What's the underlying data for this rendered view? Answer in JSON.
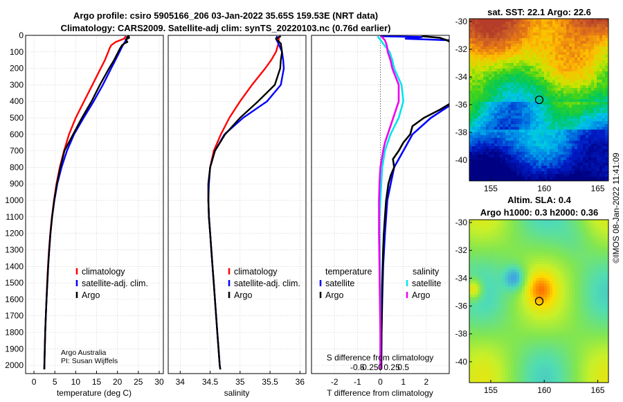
{
  "header": {
    "title_line1": "Argo profile: csiro 5905166_206 03-Jan-2022 35.65S 159.53E (NRT data)",
    "title_line2": "Climatology: CARS2009. Satellite-adj clim: synTS_20220103.nc (0.76d earlier)"
  },
  "colors": {
    "climatology": "#ff0000",
    "satellite": "#0000ff",
    "argo": "#000000",
    "satellite_salinity": "#00e5ee",
    "argo_salinity": "#ee00ee"
  },
  "chart_data": [
    {
      "type": "line",
      "id": "temperature",
      "xlabel": "temperature (deg C)",
      "xlim": [
        -2,
        31
      ],
      "xticks": [
        0,
        5,
        10,
        15,
        20,
        25,
        30
      ],
      "ylim": [
        0,
        2050
      ],
      "yticks": [
        0,
        100,
        200,
        300,
        400,
        500,
        600,
        700,
        800,
        900,
        1000,
        1100,
        1200,
        1300,
        1400,
        1500,
        1600,
        1700,
        1800,
        1900,
        2000
      ],
      "credit_line1": "Argo Australia",
      "credit_line2": "PI: Susan Wijffels",
      "legend": [
        "climatology",
        "satellite-adj. clim.",
        "Argo"
      ],
      "series": [
        {
          "name": "climatology",
          "color": "#ff0000",
          "depth": [
            5,
            20,
            40,
            60,
            80,
            100,
            150,
            200,
            300,
            400,
            500,
            600,
            700,
            800,
            900,
            1000,
            1100,
            1200,
            1300,
            1400,
            1500,
            1600,
            1700,
            1800,
            1900,
            2000,
            2025
          ],
          "value": [
            22,
            21.6,
            19.6,
            18.5,
            18.1,
            17.8,
            17.0,
            16.0,
            14.0,
            12.0,
            10.0,
            8.4,
            7.2,
            6.2,
            5.4,
            4.8,
            4.3,
            3.9,
            3.6,
            3.35,
            3.15,
            3.0,
            2.85,
            2.7,
            2.6,
            2.5,
            2.48
          ]
        },
        {
          "name": "satellite-adj. clim.",
          "color": "#0000ff",
          "depth": [
            5,
            20,
            40,
            60,
            80,
            100,
            150,
            200,
            300,
            400,
            500,
            600,
            700,
            800,
            900,
            1000,
            1100,
            1200,
            1300,
            1400,
            1500,
            1600,
            1700,
            1800,
            1900,
            2000,
            2025
          ],
          "value": [
            22.5,
            22.2,
            21.8,
            21.3,
            20.9,
            20.5,
            19.5,
            18.5,
            16.5,
            14.3,
            11.9,
            9.6,
            7.9,
            6.6,
            5.6,
            4.9,
            4.35,
            3.95,
            3.65,
            3.4,
            3.2,
            3.0,
            2.85,
            2.7,
            2.6,
            2.5,
            2.48
          ]
        },
        {
          "name": "Argo",
          "color": "#000000",
          "depth": [
            5,
            10,
            15,
            25,
            40,
            50,
            60,
            80,
            100,
            150,
            200,
            300,
            400,
            500,
            600,
            700,
            800,
            900,
            1000,
            1100,
            1200,
            1300,
            1400,
            1500,
            1600,
            1700,
            1800,
            1900,
            2000,
            2025
          ],
          "value": [
            22.9,
            22.3,
            22.8,
            22.0,
            22.4,
            21.6,
            21.1,
            20.6,
            20.2,
            19.2,
            18.0,
            15.8,
            13.8,
            11.5,
            9.4,
            7.3,
            6.3,
            5.5,
            4.85,
            4.35,
            3.95,
            3.65,
            3.4,
            3.2,
            3.0,
            2.85,
            2.7,
            2.6,
            2.5,
            2.48
          ]
        }
      ]
    },
    {
      "type": "line",
      "id": "salinity",
      "xlabel": "salinity",
      "xlim": [
        33.8,
        36.1
      ],
      "xticks": [
        34,
        34.5,
        35,
        35.5,
        36
      ],
      "ylim": [
        0,
        2050
      ],
      "legend": [
        "climatology",
        "satellite-adj. clim.",
        "Argo"
      ],
      "series": [
        {
          "name": "climatology",
          "color": "#ff0000",
          "depth": [
            5,
            50,
            100,
            150,
            200,
            300,
            400,
            500,
            600,
            700,
            800,
            900,
            1000,
            1100,
            1200,
            1300,
            1400,
            1500,
            1600,
            1700,
            1800,
            1900,
            2000,
            2025
          ],
          "value": [
            35.65,
            35.64,
            35.6,
            35.52,
            35.42,
            35.2,
            35.0,
            34.82,
            34.68,
            34.56,
            34.5,
            34.47,
            34.47,
            34.48,
            34.5,
            34.52,
            34.54,
            34.56,
            34.58,
            34.6,
            34.62,
            34.64,
            34.66,
            34.67
          ]
        },
        {
          "name": "satellite-adj. clim.",
          "color": "#0000ff",
          "depth": [
            5,
            20,
            50,
            100,
            150,
            200,
            300,
            400,
            500,
            600,
            700,
            800,
            900,
            1000,
            1100,
            1200,
            1300,
            1400,
            1500,
            1600,
            1700,
            1800,
            1900,
            2000,
            2025
          ],
          "value": [
            35.62,
            35.6,
            35.64,
            35.7,
            35.72,
            35.73,
            35.68,
            35.45,
            35.05,
            34.74,
            34.58,
            34.5,
            34.48,
            34.47,
            34.48,
            34.5,
            34.52,
            34.54,
            34.56,
            34.58,
            34.6,
            34.62,
            34.64,
            34.66,
            34.67
          ]
        },
        {
          "name": "Argo",
          "color": "#000000",
          "depth": [
            5,
            20,
            50,
            100,
            150,
            200,
            300,
            400,
            500,
            600,
            700,
            800,
            900,
            1000,
            1100,
            1200,
            1300,
            1400,
            1500,
            1600,
            1700,
            1800,
            1900,
            2000,
            2025
          ],
          "value": [
            35.68,
            35.6,
            35.68,
            35.7,
            35.68,
            35.67,
            35.58,
            35.3,
            35.0,
            34.75,
            34.58,
            34.5,
            34.47,
            34.47,
            34.48,
            34.5,
            34.52,
            34.54,
            34.56,
            34.58,
            34.6,
            34.62,
            34.64,
            34.66,
            34.67
          ]
        }
      ]
    },
    {
      "type": "line",
      "id": "difference",
      "xlabel": "T difference from climatology",
      "xlabel_top": "S difference from climatology",
      "xlim": [
        -3,
        3
      ],
      "xticks_bottom": [
        -2,
        -1,
        0,
        1,
        2
      ],
      "xticks_top": [
        "-0.5",
        "-0.25",
        "0",
        "0.25",
        "0.5"
      ],
      "legend_temperature_title": "temperature",
      "legend_salinity_title": "salinity",
      "legend_temperature": [
        "satellite",
        "Argo"
      ],
      "legend_salinity": [
        "satellite",
        "Argo"
      ],
      "series": [
        {
          "name": "T satellite",
          "color": "#0000ff",
          "depth": [
            5,
            10,
            20,
            30,
            50,
            70,
            100,
            150,
            200,
            300,
            400,
            500,
            600,
            700,
            800,
            900,
            1000,
            1200,
            1400,
            1600,
            1800,
            2025
          ],
          "value": [
            0.0,
            1.8,
            1.1,
            3.0,
            3.3,
            3.3,
            3.3,
            3.3,
            3.3,
            3.3,
            3.3,
            2.2,
            1.4,
            1.0,
            0.6,
            0.45,
            0.3,
            0.2,
            0.12,
            0.08,
            0.05,
            0.04
          ]
        },
        {
          "name": "T Argo",
          "color": "#000000",
          "depth": [
            5,
            15,
            30,
            60,
            100,
            200,
            300,
            400,
            450,
            500,
            550,
            600,
            650,
            700,
            750,
            800,
            850,
            900,
            950,
            1000,
            1100,
            1200,
            1300,
            1400,
            1500,
            1600,
            1700,
            1800,
            1900,
            2000,
            2025
          ],
          "value": [
            1.8,
            2.6,
            2.9,
            3.3,
            3.3,
            3.3,
            3.3,
            3.2,
            2.6,
            1.9,
            1.4,
            1.3,
            1.0,
            0.8,
            0.55,
            0.6,
            0.45,
            0.35,
            0.3,
            0.25,
            0.2,
            0.15,
            0.12,
            0.1,
            0.08,
            0.07,
            0.06,
            0.05,
            0.04,
            0.04,
            0.03
          ]
        },
        {
          "name": "S satellite",
          "color": "#00e5ee",
          "depth": [
            5,
            50,
            100,
            150,
            200,
            300,
            400,
            500,
            600,
            700,
            800,
            900,
            1000,
            1100,
            1200,
            1400,
            1600,
            1800,
            2025
          ],
          "value": [
            -0.06,
            0.06,
            0.2,
            0.26,
            0.3,
            0.46,
            0.5,
            0.4,
            0.22,
            0.1,
            0.04,
            0.02,
            0.0,
            -0.02,
            -0.02,
            -0.01,
            0.0,
            0.0,
            0.0
          ]
        },
        {
          "name": "S Argo",
          "color": "#ee00ee",
          "depth": [
            5,
            30,
            60,
            100,
            150,
            200,
            300,
            400,
            500,
            600,
            650,
            700,
            800,
            900,
            1000,
            1100,
            1200,
            1400,
            1600,
            1800,
            2025
          ],
          "value": [
            0.02,
            0.1,
            0.14,
            0.16,
            0.22,
            0.26,
            0.4,
            0.4,
            0.28,
            0.16,
            0.1,
            0.06,
            0.0,
            -0.02,
            -0.03,
            -0.03,
            -0.03,
            -0.02,
            -0.01,
            0.0,
            0.0
          ]
        }
      ]
    },
    {
      "type": "heatmap",
      "id": "sst_map",
      "title": "sat. SST: 22.1 Argo: 22.6",
      "xticks": [
        155,
        160,
        165
      ],
      "yticks": [
        -30,
        -32,
        -34,
        -36,
        -38,
        -40
      ],
      "xlim": [
        153,
        166
      ],
      "ylim": [
        -41.5,
        -29.8
      ],
      "marker": {
        "lon": 159.53,
        "lat": -35.65
      }
    },
    {
      "type": "heatmap",
      "id": "sla_map",
      "title_line1": "Altim. SLA: 0.4",
      "title_line2": "Argo h1000: 0.3 h2000: 0.36",
      "xticks": [
        155,
        160,
        165
      ],
      "yticks": [
        -30,
        -32,
        -34,
        -36,
        -38,
        -40
      ],
      "xlim": [
        153,
        166
      ],
      "ylim": [
        -41.5,
        -29.8
      ],
      "marker": {
        "lon": 159.53,
        "lat": -35.65
      }
    }
  ],
  "watermark": "©IMOS 08-Jan-2022 11:41:09"
}
